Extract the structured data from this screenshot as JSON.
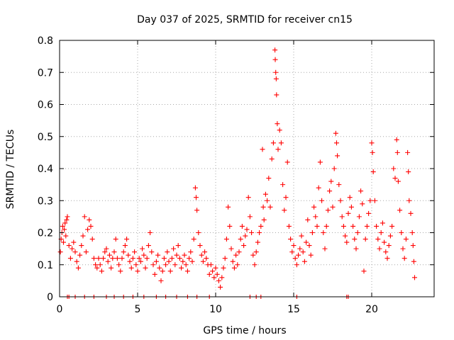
{
  "chart_data": {
    "type": "scatter",
    "title": "Day 037 of 2025, SRMTID for receiver cn15",
    "xlabel": "GPS time / hours",
    "ylabel": "SRMTID / TECUs",
    "xlim": [
      0,
      24
    ],
    "ylim": [
      0,
      0.8
    ],
    "xticks": [
      0,
      5,
      10,
      15,
      20
    ],
    "yticks": [
      0,
      0.1,
      0.2,
      0.3,
      0.4,
      0.5,
      0.6,
      0.7,
      0.8
    ],
    "grid": true,
    "marker": "+",
    "color": "#ff0000",
    "series": [
      {
        "name": "SRMTID",
        "points": [
          [
            0.05,
            0.14
          ],
          [
            0.1,
            0.18
          ],
          [
            0.15,
            0.2
          ],
          [
            0.2,
            0.22
          ],
          [
            0.25,
            0.17
          ],
          [
            0.3,
            0.21
          ],
          [
            0.35,
            0.23
          ],
          [
            0.4,
            0.19
          ],
          [
            0.45,
            0.24
          ],
          [
            0.5,
            0.25
          ],
          [
            0.6,
            0.16
          ],
          [
            0.7,
            0.12
          ],
          [
            0.8,
            0.15
          ],
          [
            0.9,
            0.17
          ],
          [
            1.0,
            0.14
          ],
          [
            1.1,
            0.11
          ],
          [
            1.2,
            0.09
          ],
          [
            1.3,
            0.13
          ],
          [
            1.4,
            0.16
          ],
          [
            1.5,
            0.19
          ],
          [
            1.6,
            0.25
          ],
          [
            1.7,
            0.14
          ],
          [
            1.8,
            0.21
          ],
          [
            1.9,
            0.24
          ],
          [
            2.0,
            0.22
          ],
          [
            2.1,
            0.18
          ],
          [
            2.2,
            0.12
          ],
          [
            2.3,
            0.1
          ],
          [
            2.4,
            0.09
          ],
          [
            2.5,
            0.12
          ],
          [
            2.6,
            0.1
          ],
          [
            2.7,
            0.08
          ],
          [
            2.8,
            0.12
          ],
          [
            2.9,
            0.14
          ],
          [
            3.0,
            0.15
          ],
          [
            3.1,
            0.11
          ],
          [
            3.2,
            0.13
          ],
          [
            3.3,
            0.09
          ],
          [
            3.4,
            0.12
          ],
          [
            3.5,
            0.14
          ],
          [
            3.6,
            0.18
          ],
          [
            3.7,
            0.12
          ],
          [
            3.8,
            0.1
          ],
          [
            3.9,
            0.08
          ],
          [
            4.0,
            0.12
          ],
          [
            4.1,
            0.14
          ],
          [
            4.2,
            0.16
          ],
          [
            4.3,
            0.18
          ],
          [
            4.4,
            0.13
          ],
          [
            4.5,
            0.11
          ],
          [
            4.6,
            0.09
          ],
          [
            4.7,
            0.12
          ],
          [
            4.8,
            0.14
          ],
          [
            4.9,
            0.1
          ],
          [
            5.0,
            0.08
          ],
          [
            5.1,
            0.12
          ],
          [
            5.2,
            0.11
          ],
          [
            5.3,
            0.15
          ],
          [
            5.4,
            0.13
          ],
          [
            5.5,
            0.09
          ],
          [
            5.6,
            0.12
          ],
          [
            5.7,
            0.16
          ],
          [
            5.8,
            0.2
          ],
          [
            5.9,
            0.14
          ],
          [
            6.0,
            0.1
          ],
          [
            6.1,
            0.07
          ],
          [
            6.2,
            0.11
          ],
          [
            6.3,
            0.13
          ],
          [
            6.4,
            0.09
          ],
          [
            6.5,
            0.05
          ],
          [
            6.6,
            0.08
          ],
          [
            6.7,
            0.12
          ],
          [
            6.8,
            0.1
          ],
          [
            6.9,
            0.14
          ],
          [
            7.0,
            0.11
          ],
          [
            7.1,
            0.08
          ],
          [
            7.2,
            0.12
          ],
          [
            7.3,
            0.15
          ],
          [
            7.4,
            0.1
          ],
          [
            7.5,
            0.13
          ],
          [
            7.6,
            0.16
          ],
          [
            7.7,
            0.12
          ],
          [
            7.8,
            0.09
          ],
          [
            7.9,
            0.11
          ],
          [
            8.0,
            0.13
          ],
          [
            8.1,
            0.1
          ],
          [
            8.2,
            0.08
          ],
          [
            8.3,
            0.12
          ],
          [
            8.4,
            0.14
          ],
          [
            8.5,
            0.11
          ],
          [
            8.6,
            0.18
          ],
          [
            8.7,
            0.34
          ],
          [
            8.75,
            0.31
          ],
          [
            8.8,
            0.27
          ],
          [
            8.9,
            0.2
          ],
          [
            9.0,
            0.16
          ],
          [
            9.1,
            0.13
          ],
          [
            9.2,
            0.11
          ],
          [
            9.3,
            0.14
          ],
          [
            9.4,
            0.12
          ],
          [
            9.5,
            0.1
          ],
          [
            9.6,
            0.07
          ],
          [
            9.7,
            0.1
          ],
          [
            9.8,
            0.08
          ],
          [
            9.9,
            0.06
          ],
          [
            10.0,
            0.09
          ],
          [
            10.1,
            0.07
          ],
          [
            10.2,
            0.05
          ],
          [
            10.3,
            0.03
          ],
          [
            10.4,
            0.06
          ],
          [
            10.5,
            0.09
          ],
          [
            10.6,
            0.12
          ],
          [
            10.7,
            0.18
          ],
          [
            10.8,
            0.28
          ],
          [
            10.9,
            0.22
          ],
          [
            11.0,
            0.15
          ],
          [
            11.1,
            0.11
          ],
          [
            11.2,
            0.09
          ],
          [
            11.3,
            0.13
          ],
          [
            11.4,
            0.1
          ],
          [
            11.5,
            0.14
          ],
          [
            11.6,
            0.18
          ],
          [
            11.7,
            0.22
          ],
          [
            11.8,
            0.16
          ],
          [
            11.9,
            0.19
          ],
          [
            12.0,
            0.21
          ],
          [
            12.1,
            0.31
          ],
          [
            12.2,
            0.25
          ],
          [
            12.3,
            0.2
          ],
          [
            12.4,
            0.13
          ],
          [
            12.5,
            0.1
          ],
          [
            12.6,
            0.14
          ],
          [
            12.7,
            0.17
          ],
          [
            12.8,
            0.2
          ],
          [
            12.9,
            0.22
          ],
          [
            13.0,
            0.46
          ],
          [
            13.05,
            0.28
          ],
          [
            13.1,
            0.24
          ],
          [
            13.2,
            0.32
          ],
          [
            13.3,
            0.3
          ],
          [
            13.4,
            0.37
          ],
          [
            13.5,
            0.28
          ],
          [
            13.6,
            0.43
          ],
          [
            13.7,
            0.48
          ],
          [
            13.8,
            0.77
          ],
          [
            13.82,
            0.74
          ],
          [
            13.85,
            0.7
          ],
          [
            13.88,
            0.68
          ],
          [
            13.9,
            0.63
          ],
          [
            13.95,
            0.54
          ],
          [
            14.0,
            0.46
          ],
          [
            14.1,
            0.52
          ],
          [
            14.2,
            0.48
          ],
          [
            14.3,
            0.35
          ],
          [
            14.4,
            0.27
          ],
          [
            14.5,
            0.31
          ],
          [
            14.6,
            0.42
          ],
          [
            14.7,
            0.22
          ],
          [
            14.8,
            0.18
          ],
          [
            14.9,
            0.14
          ],
          [
            15.0,
            0.16
          ],
          [
            15.1,
            0.12
          ],
          [
            15.2,
            0.1
          ],
          [
            15.3,
            0.13
          ],
          [
            15.4,
            0.15
          ],
          [
            15.5,
            0.19
          ],
          [
            15.6,
            0.14
          ],
          [
            15.7,
            0.11
          ],
          [
            15.8,
            0.17
          ],
          [
            15.9,
            0.24
          ],
          [
            16.0,
            0.16
          ],
          [
            16.1,
            0.13
          ],
          [
            16.2,
            0.2
          ],
          [
            16.3,
            0.28
          ],
          [
            16.4,
            0.25
          ],
          [
            16.5,
            0.22
          ],
          [
            16.6,
            0.34
          ],
          [
            16.7,
            0.42
          ],
          [
            16.8,
            0.3
          ],
          [
            16.9,
            0.2
          ],
          [
            17.0,
            0.15
          ],
          [
            17.1,
            0.22
          ],
          [
            17.2,
            0.27
          ],
          [
            17.3,
            0.33
          ],
          [
            17.4,
            0.36
          ],
          [
            17.5,
            0.28
          ],
          [
            17.6,
            0.4
          ],
          [
            17.7,
            0.51
          ],
          [
            17.75,
            0.48
          ],
          [
            17.8,
            0.44
          ],
          [
            17.9,
            0.35
          ],
          [
            18.0,
            0.3
          ],
          [
            18.1,
            0.25
          ],
          [
            18.2,
            0.22
          ],
          [
            18.3,
            0.19
          ],
          [
            18.4,
            0.17
          ],
          [
            18.5,
            0.26
          ],
          [
            18.6,
            0.31
          ],
          [
            18.7,
            0.28
          ],
          [
            18.8,
            0.22
          ],
          [
            18.9,
            0.18
          ],
          [
            19.0,
            0.15
          ],
          [
            19.1,
            0.2
          ],
          [
            19.2,
            0.25
          ],
          [
            19.3,
            0.33
          ],
          [
            19.4,
            0.29
          ],
          [
            19.5,
            0.08
          ],
          [
            19.6,
            0.18
          ],
          [
            19.7,
            0.22
          ],
          [
            19.8,
            0.26
          ],
          [
            19.9,
            0.3
          ],
          [
            20.0,
            0.48
          ],
          [
            20.05,
            0.45
          ],
          [
            20.1,
            0.39
          ],
          [
            20.2,
            0.3
          ],
          [
            20.3,
            0.22
          ],
          [
            20.4,
            0.18
          ],
          [
            20.5,
            0.15
          ],
          [
            20.6,
            0.2
          ],
          [
            20.7,
            0.23
          ],
          [
            20.8,
            0.17
          ],
          [
            20.9,
            0.14
          ],
          [
            21.0,
            0.12
          ],
          [
            21.1,
            0.16
          ],
          [
            21.2,
            0.19
          ],
          [
            21.3,
            0.22
          ],
          [
            21.4,
            0.4
          ],
          [
            21.5,
            0.37
          ],
          [
            21.6,
            0.49
          ],
          [
            21.65,
            0.45
          ],
          [
            21.7,
            0.36
          ],
          [
            21.8,
            0.27
          ],
          [
            21.9,
            0.2
          ],
          [
            22.0,
            0.15
          ],
          [
            22.1,
            0.12
          ],
          [
            22.2,
            0.18
          ],
          [
            22.3,
            0.45
          ],
          [
            22.35,
            0.39
          ],
          [
            22.4,
            0.3
          ],
          [
            22.5,
            0.26
          ],
          [
            22.6,
            0.2
          ],
          [
            22.65,
            0.16
          ],
          [
            22.7,
            0.11
          ],
          [
            22.75,
            0.06
          ]
        ]
      }
    ],
    "zero_points_x": [
      0.5,
      0.6,
      1.0,
      1.6,
      2.2,
      3.0,
      3.5,
      4.1,
      4.7,
      5.4,
      6.2,
      6.8,
      7.5,
      8.2,
      8.8,
      9.6,
      12.2,
      12.6,
      12.9,
      15.2,
      18.4,
      18.5
    ]
  }
}
